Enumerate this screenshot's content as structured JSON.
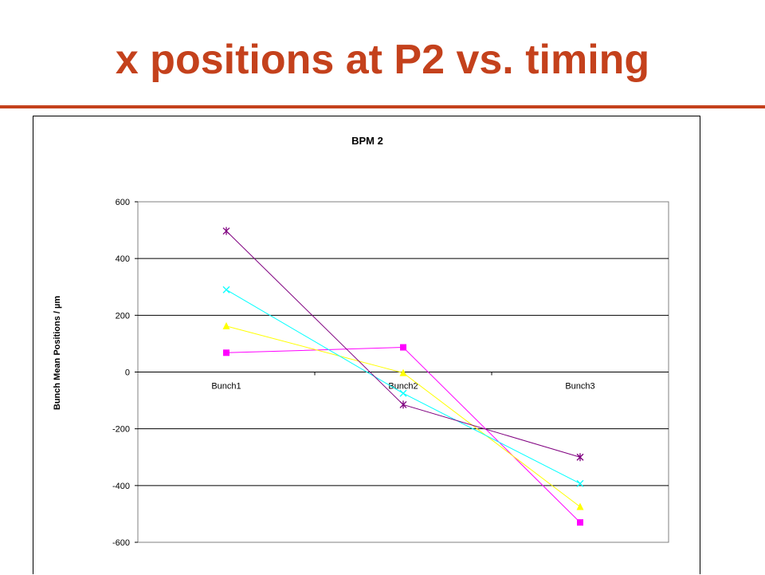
{
  "slide": {
    "title": "x positions at P2 vs. timing"
  },
  "colors": {
    "title": "#c4411c",
    "rule": "#c4411c"
  },
  "chart_data": {
    "type": "line",
    "title": "BPM 2",
    "xlabel": "",
    "ylabel": "Bunch Mean Positions / µm",
    "categories": [
      "Bunch1",
      "Bunch2",
      "Bunch3"
    ],
    "ylim": [
      -600,
      600
    ],
    "yticks": [
      600,
      400,
      200,
      0,
      -200,
      -400,
      -600
    ],
    "grid": true,
    "legend": "none",
    "series": [
      {
        "values": [
          68,
          87,
          -530
        ],
        "color": "#ff00ff",
        "marker": "square"
      },
      {
        "values": [
          162,
          -3,
          -475
        ],
        "color": "#ffff00",
        "marker": "triangle"
      },
      {
        "values": [
          290,
          -75,
          -393
        ],
        "color": "#00ffff",
        "marker": "x"
      },
      {
        "values": [
          497,
          -115,
          -300
        ],
        "color": "#800080",
        "marker": "star"
      }
    ]
  }
}
